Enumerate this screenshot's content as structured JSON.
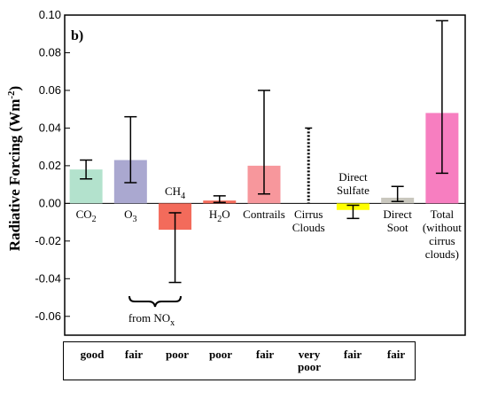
{
  "panel_label": "b)",
  "bracket_label_main": "from NO",
  "bracket_label_sub": "x",
  "quality_ratings": [
    "good",
    "fair",
    "poor",
    "poor",
    "fair",
    "very\npoor",
    "fair",
    "fair"
  ],
  "colors": {
    "co2": "#b3e2cd",
    "o3": "#aaa8d0",
    "ch4": "#f36b5b",
    "h2o": "#f36b5b",
    "contrails": "#f7979c",
    "cirrus": "#ffffff",
    "sulfate": "#ffff00",
    "soot": "#c9c7be",
    "total": "#f77ec0"
  },
  "chart_data": {
    "type": "bar",
    "ylabel": "Radiative Forcing (Wm-2)",
    "ylabel_main": "Radiative Forcing (Wm",
    "ylabel_sup": "-2",
    "ylabel_end": ")",
    "ylim": [
      -0.07,
      0.1
    ],
    "yticks": [
      "0.10",
      "0.08",
      "0.06",
      "0.04",
      "0.02",
      "0.00",
      "-0.02",
      "-0.04",
      "-0.06"
    ],
    "ytick_values": [
      0.1,
      0.08,
      0.06,
      0.04,
      0.02,
      0.0,
      -0.02,
      -0.04,
      -0.06
    ],
    "grid": false,
    "categories": [
      "CO2",
      "O3",
      "CH4",
      "H2O",
      "Contrails",
      "Cirrus Clouds",
      "Direct Sulfate",
      "Direct Soot",
      "Total (without cirrus clouds)"
    ],
    "values": [
      0.018,
      0.023,
      -0.014,
      0.0015,
      0.02,
      0.0,
      -0.0035,
      0.003,
      0.048
    ],
    "error_low": [
      0.013,
      0.011,
      -0.042,
      0.0005,
      0.005,
      0.0,
      -0.008,
      0.001,
      0.016
    ],
    "error_high": [
      0.023,
      0.046,
      -0.005,
      0.004,
      0.06,
      0.04,
      -0.001,
      0.009,
      0.097
    ],
    "cat_labels": [
      {
        "text": "CO",
        "sub": "2"
      },
      {
        "text": "O",
        "sub": "3"
      },
      {
        "text": "CH",
        "sub": "4"
      },
      {
        "text": "H",
        "sub": "2",
        "tail": "O"
      },
      {
        "text": "Contrails"
      },
      {
        "lines": [
          "Cirrus",
          "Clouds"
        ]
      },
      {
        "lines": [
          "Direct",
          "Sulfate"
        ]
      },
      {
        "lines": [
          "Direct",
          "Soot"
        ]
      },
      {
        "lines": [
          "Total",
          "(without",
          "cirrus",
          "clouds)"
        ]
      }
    ]
  }
}
